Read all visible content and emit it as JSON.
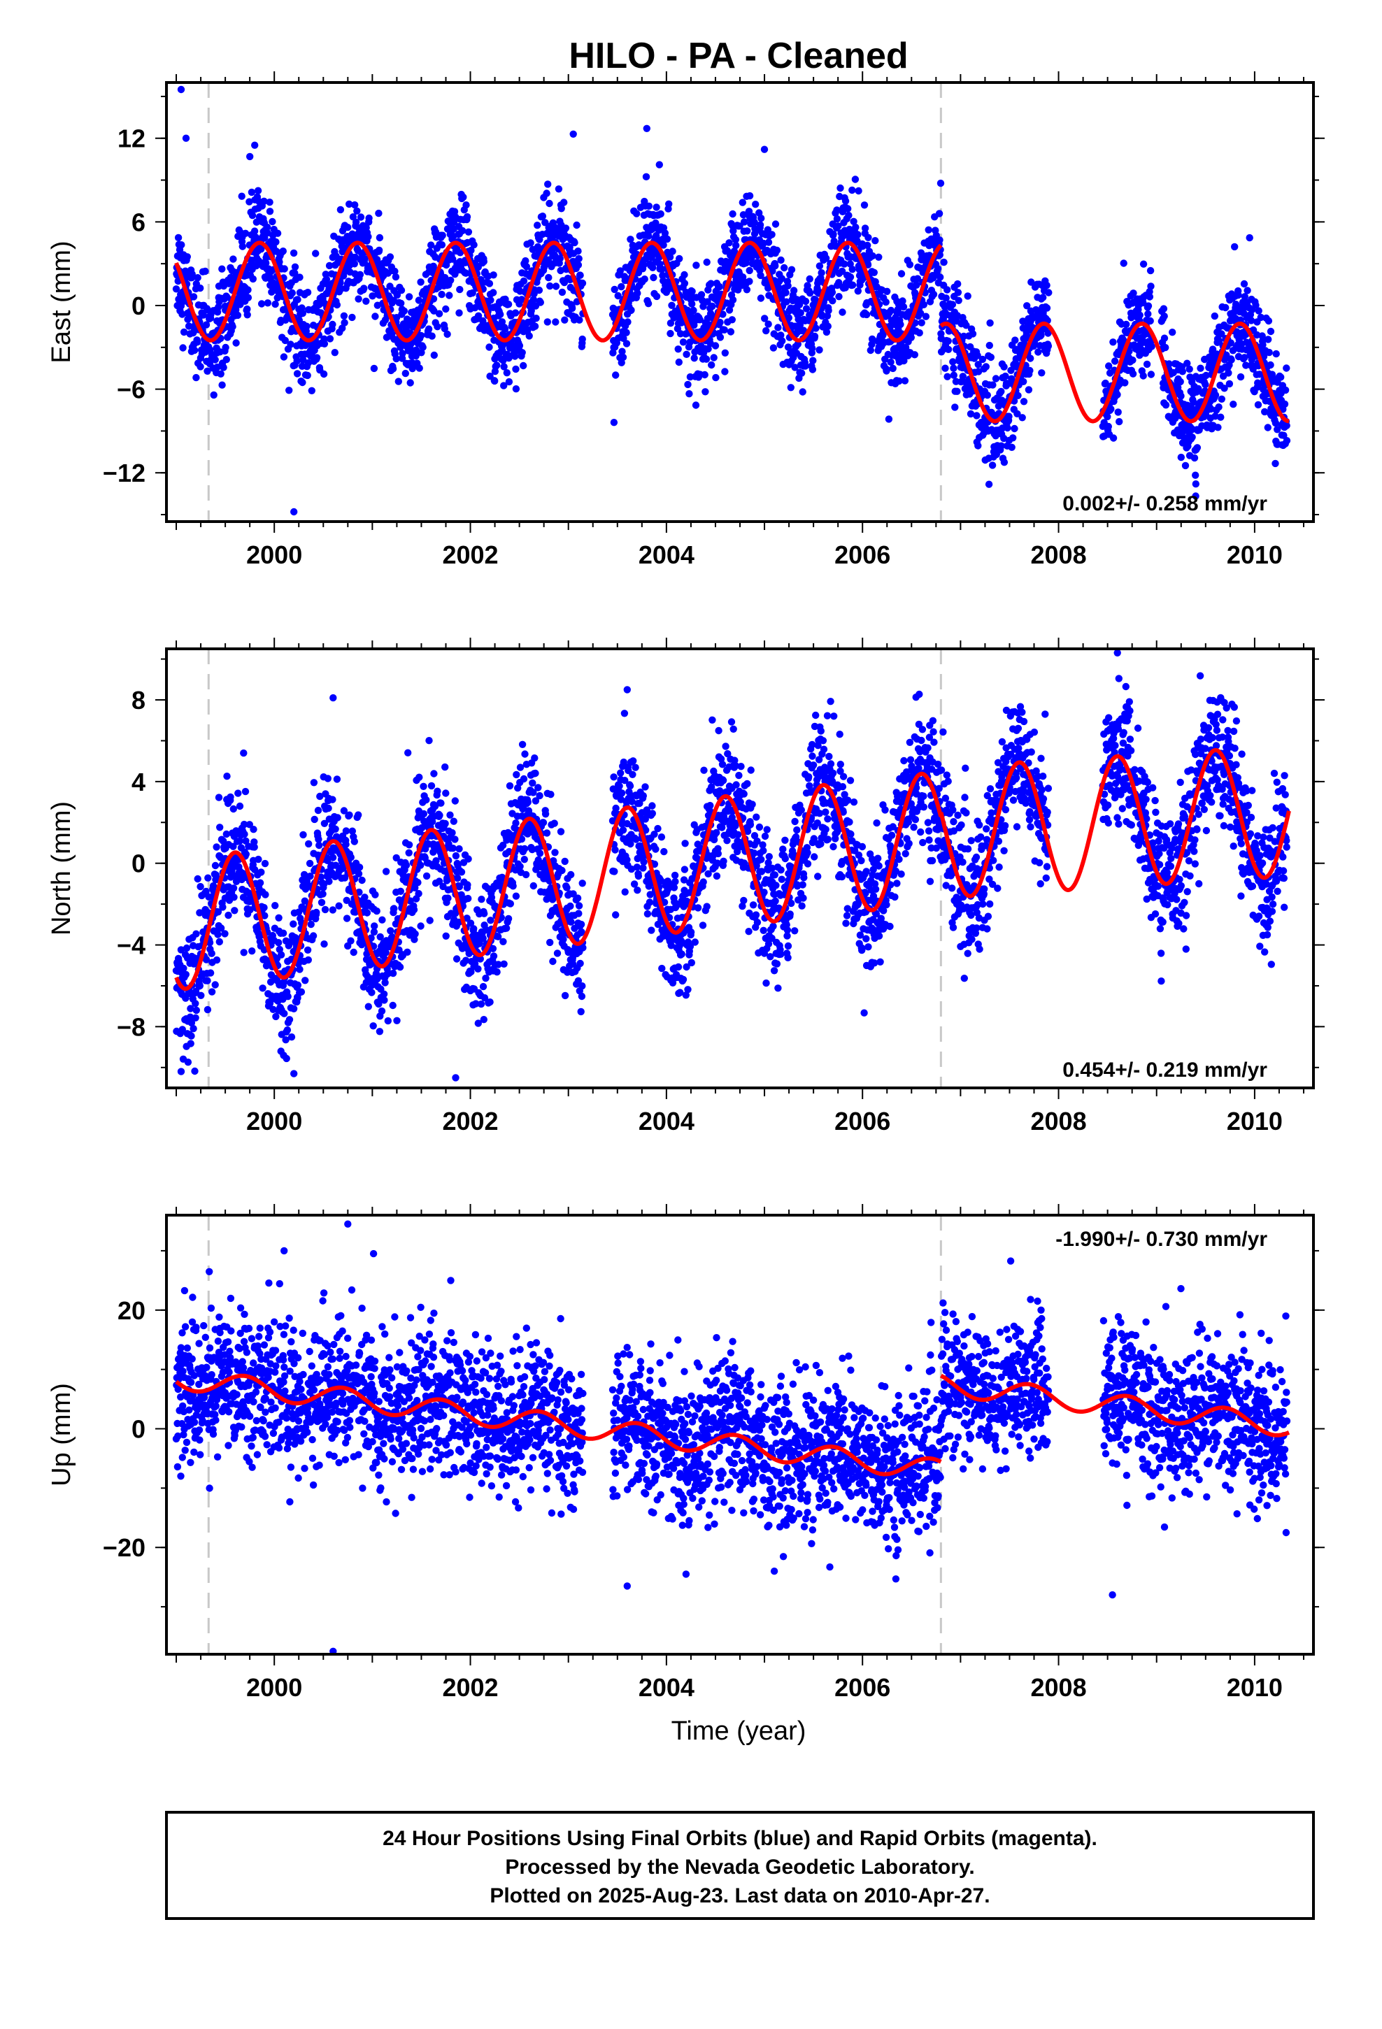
{
  "title": "HILO  - PA - Cleaned",
  "xlabel": "Time (year)",
  "footer": [
    "24 Hour Positions Using Final Orbits (blue) and Rapid Orbits (magenta).",
    "Processed by the Nevada Geodetic Laboratory.",
    "Plotted on 2025-Aug-23. Last data on 2010-Apr-27."
  ],
  "colors": {
    "points": "#0000ff",
    "model": "#ff0000",
    "breaks": "#c8c8c8"
  },
  "chart_data": [
    {
      "type": "scatter",
      "ylabel": "East (mm)",
      "rate_label": "0.002+/- 0.258 mm/yr",
      "rate_position": "bottom-right",
      "xlim": [
        1998.9,
        2010.6
      ],
      "ylim": [
        -15.5,
        16
      ],
      "xticks": [
        2000,
        2002,
        2004,
        2006,
        2008,
        2010
      ],
      "yticks": [
        -12,
        -6,
        0,
        6,
        12
      ],
      "breaks": [
        1999.33,
        2006.8
      ],
      "data_gaps": [
        [
          2003.15,
          2003.45
        ],
        [
          2007.9,
          2008.45
        ],
        [
          2008.95,
          2009.05
        ]
      ],
      "model": {
        "segments": [
          {
            "t0": 1999.0,
            "t1": 2006.8,
            "offset": 1.0,
            "trend": 0.0,
            "amp": 3.5,
            "phase": 1999.85
          },
          {
            "t0": 2006.8,
            "t1": 2010.35,
            "offset": -4.8,
            "trend": 0.0,
            "amp": 3.5,
            "phase": 1999.85
          }
        ],
        "range_mm": [
          -8.5,
          4.6
        ]
      },
      "scatter_sigma": 1.8,
      "outliers": [
        [
          1999.05,
          15.5
        ],
        [
          1999.1,
          12.0
        ],
        [
          2000.2,
          -14.8
        ],
        [
          2003.05,
          12.3
        ],
        [
          2003.8,
          12.7
        ],
        [
          2005.0,
          11.2
        ],
        [
          1999.8,
          11.5
        ],
        [
          2009.4,
          -12.8
        ]
      ]
    },
    {
      "type": "scatter",
      "ylabel": "North (mm)",
      "rate_label": "0.454+/- 0.219 mm/yr",
      "rate_position": "bottom-right",
      "xlim": [
        1998.9,
        2010.6
      ],
      "ylim": [
        -11,
        10.5
      ],
      "xticks": [
        2000,
        2002,
        2004,
        2006,
        2008,
        2010
      ],
      "yticks": [
        -8,
        -4,
        0,
        4,
        8
      ],
      "breaks": [
        1999.33,
        2006.8
      ],
      "data_gaps": [
        [
          2003.15,
          2003.45
        ],
        [
          2007.9,
          2008.45
        ]
      ],
      "model": {
        "segments": [
          {
            "t0": 1999.0,
            "t1": 2006.8,
            "offset": -3.0,
            "trend": 0.55,
            "amp": 3.2,
            "phase": 1999.6
          },
          {
            "t0": 2006.8,
            "t1": 2010.35,
            "offset": 1.5,
            "trend": 0.3,
            "amp": 3.2,
            "phase": 1999.6
          }
        ],
        "range_mm": [
          -4.9,
          7.2
        ]
      },
      "scatter_sigma": 1.6,
      "outliers": [
        [
          1999.05,
          -10.2
        ],
        [
          2000.2,
          -10.3
        ],
        [
          2001.85,
          -10.5
        ],
        [
          2003.6,
          8.5
        ],
        [
          2000.6,
          8.1
        ],
        [
          2008.6,
          10.3
        ],
        [
          2009.3,
          -4.2
        ]
      ]
    },
    {
      "type": "scatter",
      "ylabel": "Up (mm)",
      "rate_label": "-1.990+/- 0.730 mm/yr",
      "rate_position": "top-right",
      "xlim": [
        1998.9,
        2010.6
      ],
      "ylim": [
        -38,
        36
      ],
      "xticks": [
        2000,
        2002,
        2004,
        2006,
        2008,
        2010
      ],
      "yticks": [
        -20,
        0,
        20
      ],
      "breaks": [
        1999.33,
        2006.8
      ],
      "data_gaps": [
        [
          2003.15,
          2003.45
        ],
        [
          2007.9,
          2008.45
        ]
      ],
      "model": {
        "segments": [
          {
            "t0": 1999.0,
            "t1": 2006.8,
            "offset": 8.5,
            "trend": -1.99,
            "amp": 1.8,
            "phase": 1999.7
          },
          {
            "t0": 2006.8,
            "t1": 2010.35,
            "offset": 7.5,
            "trend": -1.99,
            "amp": 1.8,
            "phase": 1999.7
          }
        ],
        "range_mm": [
          -11,
          12.5
        ]
      },
      "scatter_sigma": 6.0,
      "outliers": [
        [
          2000.75,
          34.5
        ],
        [
          2000.6,
          -37.5
        ],
        [
          2008.55,
          -28
        ],
        [
          2003.6,
          -26.5
        ],
        [
          2000.1,
          30
        ],
        [
          2001.8,
          25
        ],
        [
          2004.2,
          -24.5
        ],
        [
          2005.1,
          -24
        ]
      ]
    }
  ]
}
